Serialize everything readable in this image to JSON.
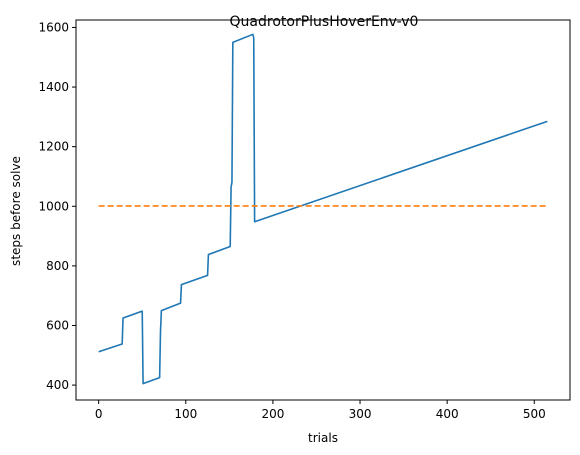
{
  "chart_data": {
    "type": "line",
    "title": "QuadrotorPlusHoverEnv-v0",
    "xlabel": "trials",
    "ylabel": "steps before solve",
    "xlim": [
      -26,
      541
    ],
    "ylim": [
      350,
      1625
    ],
    "xticks": [
      0,
      100,
      200,
      300,
      400,
      500
    ],
    "yticks": [
      400,
      600,
      800,
      1000,
      1200,
      1400,
      1600
    ],
    "grid": false,
    "series": [
      {
        "color": "#1f77b4",
        "style": "solid",
        "x": [
          0,
          27,
          28,
          50,
          51,
          70,
          71,
          72,
          94,
          95,
          125,
          126,
          151,
          152,
          153,
          154,
          177,
          178,
          179,
          515
        ],
        "y": [
          512,
          538,
          625,
          648,
          405,
          425,
          580,
          650,
          675,
          737,
          768,
          838,
          865,
          1065,
          1080,
          1550,
          1577,
          1565,
          948,
          1285
        ]
      },
      {
        "color": "#ff7f0e",
        "style": "dashed",
        "x": [
          0,
          515
        ],
        "y": [
          1001,
          1001
        ]
      }
    ]
  }
}
